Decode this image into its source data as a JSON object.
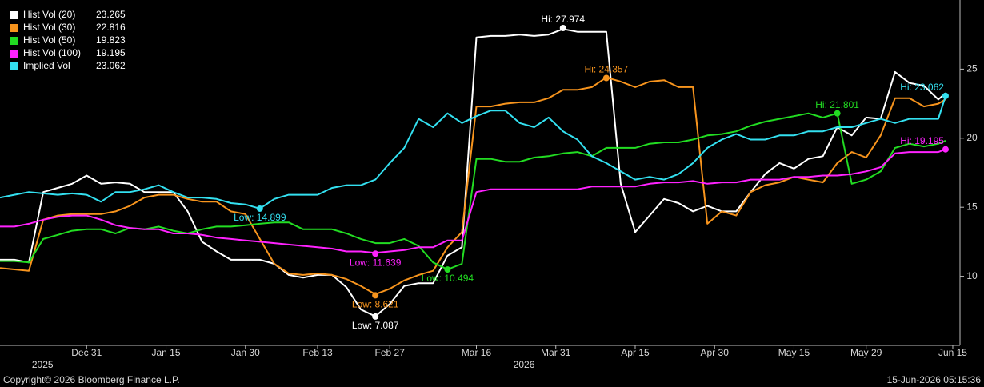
{
  "chart_data": {
    "type": "line",
    "x": [
      0,
      2,
      4,
      6,
      8,
      10,
      12,
      14,
      16,
      18,
      20,
      22,
      24,
      26,
      28,
      30,
      32,
      34,
      36,
      38,
      40,
      42,
      44,
      46,
      48,
      50,
      52,
      54,
      56,
      58,
      60,
      62,
      64,
      66,
      68,
      70,
      72,
      74,
      76,
      78,
      80,
      82,
      84,
      86,
      88,
      90,
      92,
      94,
      96,
      98,
      100,
      102,
      104,
      106,
      108,
      110,
      112,
      114,
      116,
      118,
      120,
      122,
      124,
      126,
      128,
      130,
      131
    ],
    "series": [
      {
        "name": "Hist Vol (20)",
        "color": "#ffffff",
        "last": 23.265,
        "values": [
          11.2,
          11.2,
          11.0,
          16.1,
          16.4,
          16.7,
          17.3,
          16.7,
          16.8,
          16.7,
          16.1,
          16.1,
          16.1,
          14.7,
          12.5,
          11.8,
          11.2,
          11.2,
          11.2,
          10.9,
          10.1,
          9.9,
          10.1,
          10.1,
          9.2,
          7.6,
          7.1,
          8.0,
          9.3,
          9.5,
          9.5,
          11.5,
          12.1,
          27.3,
          27.4,
          27.4,
          27.5,
          27.4,
          27.5,
          27.9,
          27.7,
          27.7,
          27.7,
          16.7,
          13.2,
          14.4,
          15.6,
          15.3,
          14.7,
          15.1,
          14.7,
          14.7,
          16.1,
          17.4,
          18.2,
          17.8,
          18.5,
          18.7,
          20.8,
          20.2,
          21.5,
          21.4,
          24.8,
          24.0,
          23.8,
          22.8,
          23.265
        ]
      },
      {
        "name": "Hist Vol (30)",
        "color": "#f7941d",
        "last": 22.816,
        "values": [
          10.6,
          10.5,
          10.4,
          14.1,
          14.4,
          14.5,
          14.5,
          14.5,
          14.7,
          15.1,
          15.7,
          15.9,
          15.9,
          15.6,
          15.4,
          15.4,
          14.7,
          14.5,
          12.7,
          10.9,
          10.2,
          10.1,
          10.2,
          10.1,
          9.8,
          9.3,
          8.7,
          9.1,
          9.7,
          10.1,
          10.4,
          12.1,
          13.2,
          22.3,
          22.3,
          22.5,
          22.6,
          22.6,
          22.9,
          23.5,
          23.5,
          23.7,
          24.4,
          24.1,
          23.7,
          24.1,
          24.2,
          23.7,
          23.7,
          13.8,
          14.7,
          14.4,
          16.1,
          16.6,
          16.8,
          17.2,
          17.0,
          16.8,
          18.2,
          19.0,
          18.6,
          20.2,
          22.9,
          22.9,
          22.3,
          22.5,
          22.816
        ]
      },
      {
        "name": "Hist Vol (50)",
        "color": "#22dd22",
        "last": 19.823,
        "values": [
          11.1,
          11.1,
          11.0,
          12.7,
          13.0,
          13.3,
          13.4,
          13.4,
          13.1,
          13.5,
          13.4,
          13.6,
          13.3,
          13.1,
          13.4,
          13.6,
          13.6,
          13.7,
          13.8,
          13.9,
          13.9,
          13.4,
          13.4,
          13.4,
          13.1,
          12.7,
          12.4,
          12.4,
          12.7,
          12.2,
          11.0,
          10.5,
          10.9,
          18.5,
          18.5,
          18.3,
          18.3,
          18.6,
          18.7,
          18.9,
          19.0,
          18.7,
          19.3,
          19.3,
          19.3,
          19.6,
          19.7,
          19.7,
          19.9,
          20.2,
          20.3,
          20.5,
          20.9,
          21.2,
          21.4,
          21.6,
          21.8,
          21.5,
          21.8,
          16.7,
          17.0,
          17.6,
          19.3,
          19.6,
          19.4,
          19.6,
          19.823
        ]
      },
      {
        "name": "Hist Vol (100)",
        "color": "#ff22ff",
        "last": 19.195,
        "values": [
          13.6,
          13.6,
          13.8,
          14.1,
          14.3,
          14.4,
          14.4,
          14.1,
          13.7,
          13.5,
          13.4,
          13.4,
          13.1,
          13.1,
          13.0,
          12.8,
          12.7,
          12.6,
          12.5,
          12.4,
          12.3,
          12.2,
          12.1,
          12.0,
          11.8,
          11.8,
          11.7,
          11.8,
          11.9,
          12.1,
          12.1,
          12.6,
          12.6,
          16.1,
          16.3,
          16.3,
          16.3,
          16.3,
          16.3,
          16.3,
          16.3,
          16.5,
          16.5,
          16.5,
          16.5,
          16.7,
          16.8,
          16.8,
          16.9,
          16.7,
          16.8,
          16.8,
          17.0,
          17.0,
          17.0,
          17.2,
          17.2,
          17.3,
          17.3,
          17.4,
          17.6,
          17.9,
          18.9,
          19.0,
          19.0,
          19.0,
          19.195
        ]
      },
      {
        "name": "Implied Vol",
        "color": "#33e0f0",
        "last": 23.062,
        "values": [
          15.7,
          15.9,
          16.1,
          16.0,
          15.9,
          16.0,
          15.9,
          15.4,
          16.1,
          16.1,
          16.3,
          16.6,
          16.1,
          15.7,
          15.7,
          15.6,
          15.3,
          15.2,
          14.9,
          15.6,
          15.9,
          15.9,
          15.9,
          16.4,
          16.6,
          16.6,
          17.0,
          18.2,
          19.3,
          21.4,
          20.8,
          21.8,
          21.1,
          21.6,
          22.0,
          22.0,
          21.1,
          20.8,
          21.5,
          20.5,
          19.9,
          18.7,
          18.2,
          17.6,
          17.0,
          17.2,
          17.0,
          17.4,
          18.2,
          19.3,
          19.9,
          20.3,
          19.9,
          19.9,
          20.2,
          20.2,
          20.5,
          20.5,
          20.8,
          20.8,
          21.1,
          21.4,
          21.1,
          21.4,
          21.4,
          21.4,
          23.062
        ]
      }
    ],
    "annotations": [
      {
        "text": "Hi: 27.974",
        "x": 78,
        "y": 27.974,
        "color": "#ffffff"
      },
      {
        "text": "Low: 7.087",
        "x": 52,
        "y": 7.087,
        "color": "#ffffff"
      },
      {
        "text": "Hi: 24.357",
        "x": 84,
        "y": 24.357,
        "color": "#f7941d"
      },
      {
        "text": "Low: 8.621",
        "x": 52,
        "y": 8.621,
        "color": "#f7941d"
      },
      {
        "text": "Hi: 21.801",
        "x": 116,
        "y": 21.801,
        "color": "#22dd22"
      },
      {
        "text": "Low: 10.494",
        "x": 62,
        "y": 10.494,
        "color": "#22dd22"
      },
      {
        "text": "Low: 11.639",
        "x": 52,
        "y": 11.639,
        "color": "#ff22ff"
      },
      {
        "text": "Hi: 19.195",
        "x": 131,
        "y": 19.195,
        "color": "#ff22ff"
      },
      {
        "text": "Low: 14.899",
        "x": 36,
        "y": 14.899,
        "color": "#33e0f0"
      },
      {
        "text": "Hi: 23.062",
        "x": 131,
        "y": 23.062,
        "color": "#33e0f0"
      }
    ],
    "xlim": [
      0,
      133
    ],
    "xticks": [
      {
        "value": 12,
        "label": "Dec 31"
      },
      {
        "value": 23,
        "label": "Jan 15"
      },
      {
        "value": 34,
        "label": "Jan 30"
      },
      {
        "value": 44,
        "label": "Feb 13"
      },
      {
        "value": 54,
        "label": "Feb 27"
      },
      {
        "value": 66,
        "label": "Mar 16"
      },
      {
        "value": 77,
        "label": "Mar 31"
      },
      {
        "value": 88,
        "label": "Apr 15"
      },
      {
        "value": 99,
        "label": "Apr 30"
      },
      {
        "value": 110,
        "label": "May 15"
      },
      {
        "value": 120,
        "label": "May 29"
      },
      {
        "value": 132,
        "label": "Jun 15"
      }
    ],
    "x_year_labels": [
      {
        "value": 5.9,
        "label": "2025"
      },
      {
        "value": 72.6,
        "label": "2026"
      }
    ],
    "ylim": [
      5,
      30
    ],
    "yticks": [
      10,
      15,
      20,
      25
    ],
    "grid": false,
    "legend": "top-left",
    "copyright": "Copyright© 2026 Bloomberg Finance L.P.",
    "timestamp": "15-Jun-2026 05:15:36"
  }
}
